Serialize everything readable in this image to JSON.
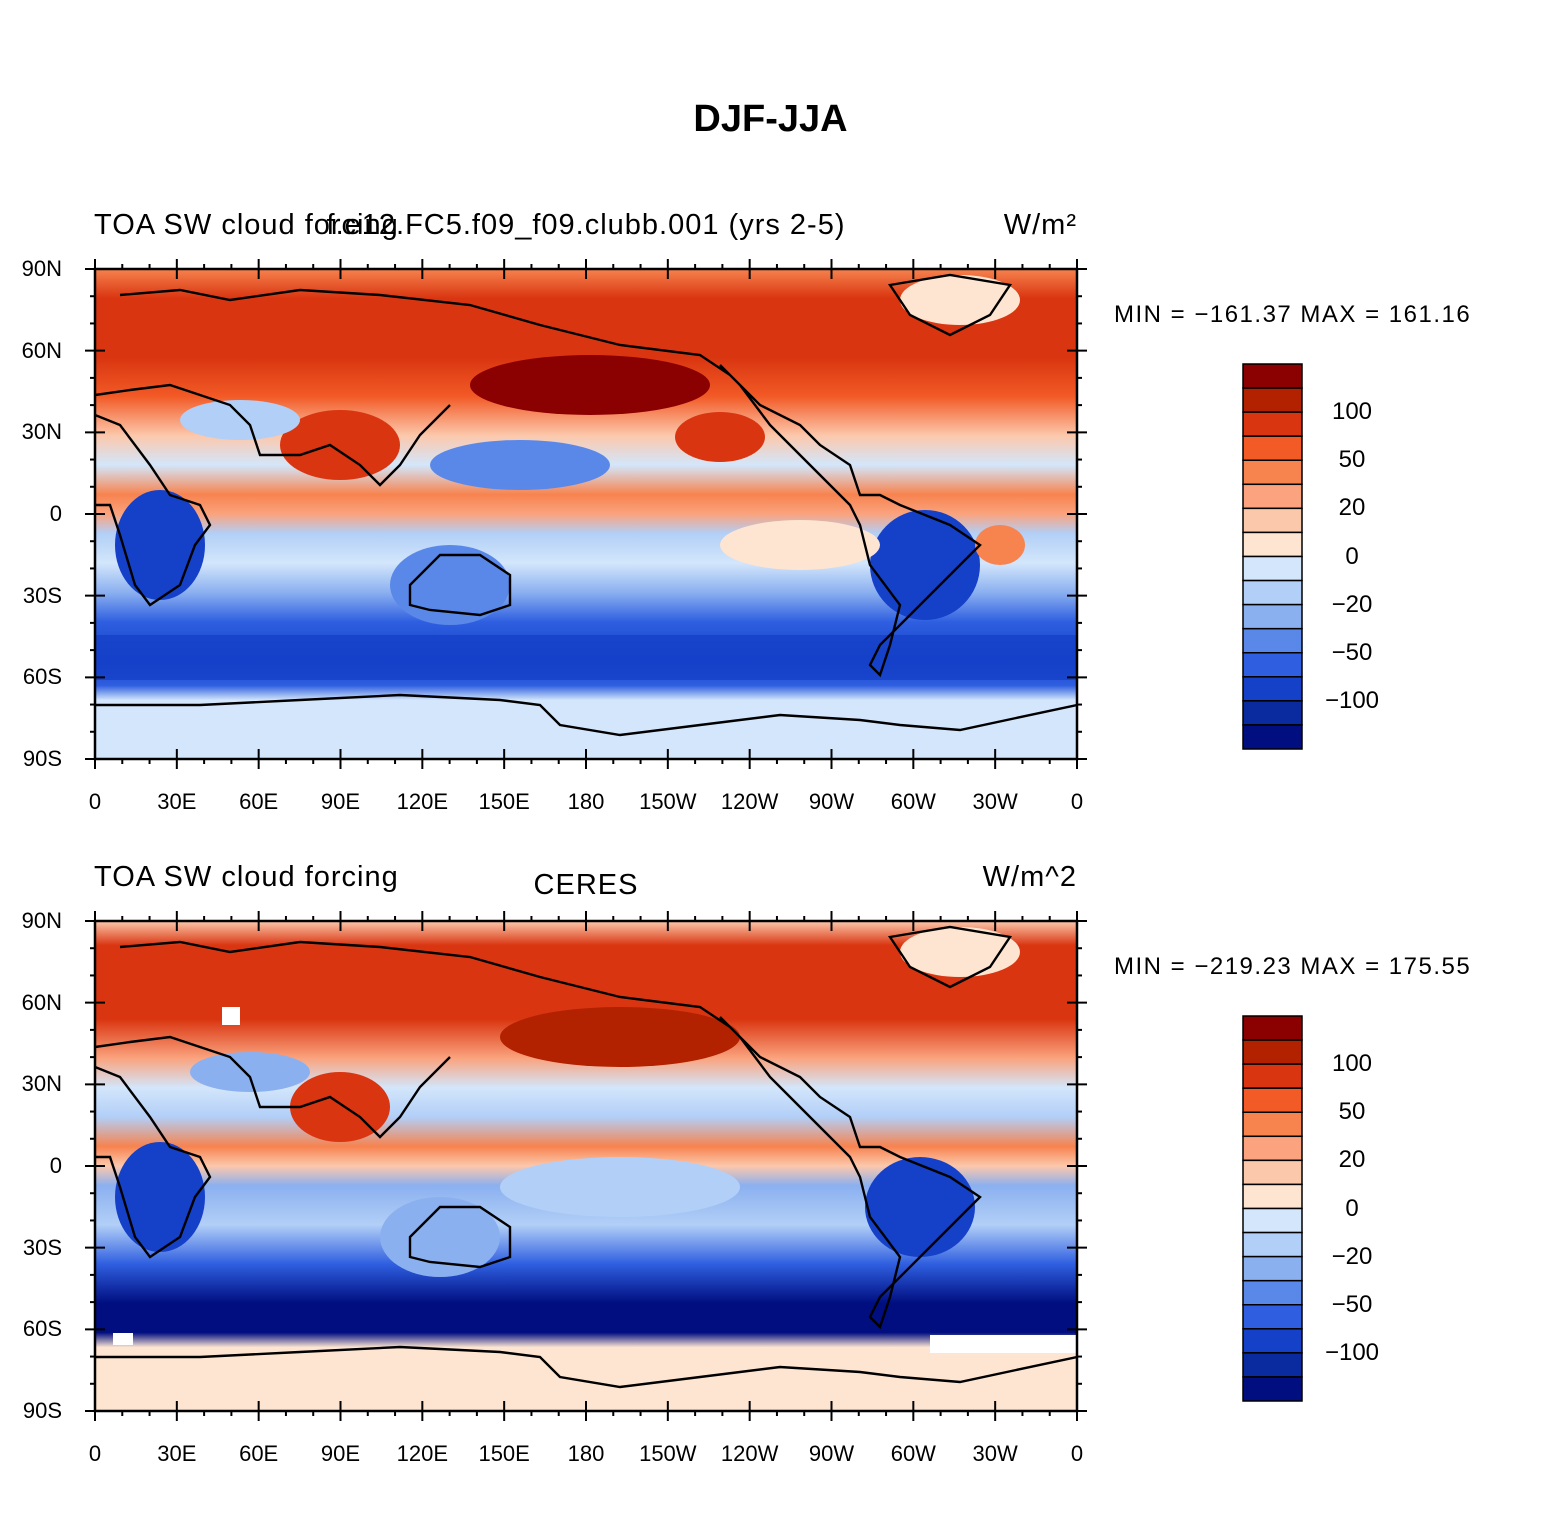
{
  "title": "DJF-JJA",
  "panels": [
    {
      "left_label": "TOA SW cloud forcing",
      "center_label": "f.e12.FC5.f09_f09.clubb.001 (yrs 2-5)",
      "right_label": "W/m²",
      "min_max": "MIN = −161.37  MAX = 161.16"
    },
    {
      "left_label": "TOA SW cloud forcing",
      "center_label": "CERES",
      "right_label": "W/m^2",
      "min_max": "MIN = −219.23  MAX = 175.55"
    }
  ],
  "lat_ticks": [
    "90N",
    "60N",
    "30N",
    "0",
    "30S",
    "60S",
    "90S"
  ],
  "lon_ticks": [
    "0",
    "30E",
    "60E",
    "90E",
    "120E",
    "150E",
    "180",
    "150W",
    "120W",
    "90W",
    "60W",
    "30W",
    "0"
  ],
  "colorbar": {
    "labels": [
      "100",
      "50",
      "20",
      "0",
      "−20",
      "−50",
      "−100"
    ],
    "colors": [
      "#8b0000",
      "#b22200",
      "#d93510",
      "#f25a26",
      "#f7834f",
      "#faa37e",
      "#fcc8ac",
      "#fde5d1",
      "#d3e6fb",
      "#b2cff7",
      "#8bb0f0",
      "#5a88e8",
      "#2f5fe0",
      "#1540c8",
      "#0a2aa0",
      "#000e80"
    ]
  },
  "chart_data": [
    {
      "type": "heatmap",
      "title": "TOA SW cloud forcing",
      "subtitle": "f.e12.FC5.f09_f09.clubb.001 (yrs 2-5)",
      "units": "W/m²",
      "min": -161.37,
      "max": 161.16,
      "x_range": [
        0,
        360
      ],
      "y_range": [
        -90,
        90
      ],
      "color_levels": [
        -120,
        -100,
        -80,
        -50,
        -40,
        -20,
        -10,
        0,
        10,
        20,
        40,
        50,
        80,
        100,
        120
      ]
    },
    {
      "type": "heatmap",
      "title": "TOA SW cloud forcing",
      "subtitle": "CERES",
      "units": "W/m^2",
      "min": -219.23,
      "max": 175.55,
      "x_range": [
        0,
        360
      ],
      "y_range": [
        -90,
        90
      ],
      "color_levels": [
        -120,
        -100,
        -80,
        -50,
        -40,
        -20,
        -10,
        0,
        10,
        20,
        40,
        50,
        80,
        100,
        120
      ]
    }
  ]
}
